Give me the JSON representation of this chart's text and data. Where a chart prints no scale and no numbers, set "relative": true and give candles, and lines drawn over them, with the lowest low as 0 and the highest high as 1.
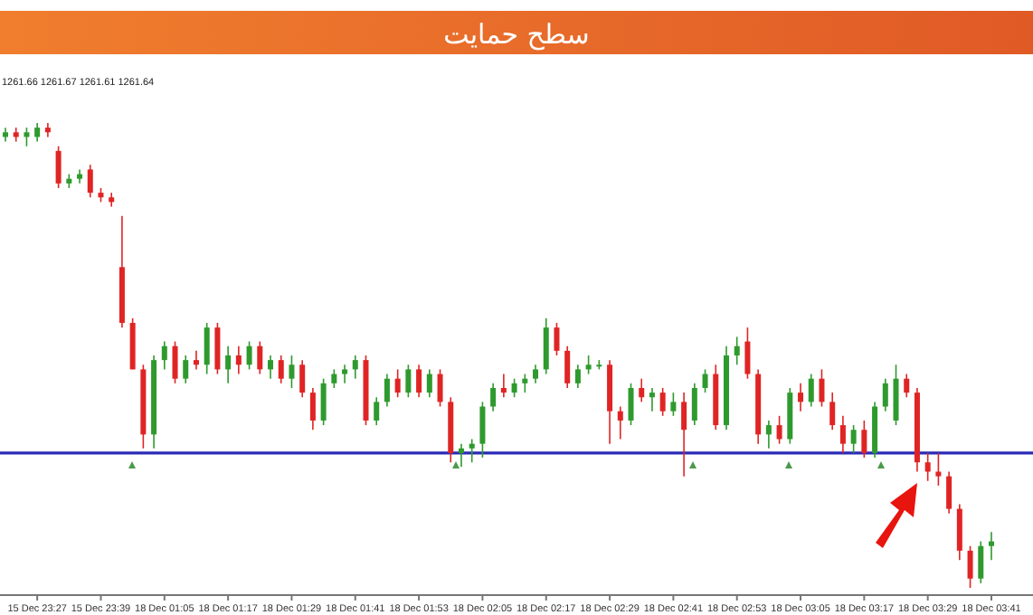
{
  "chart_data": {
    "type": "candlestick",
    "title": "سطح حمایت",
    "subtitle": "1261.66 1261.67 1261.61 1261.64",
    "relative": true,
    "categories": [
      null,
      null,
      null,
      "15 Dec 23:27",
      null,
      null,
      null,
      null,
      null,
      "15 Dec 23:39",
      null,
      null,
      null,
      null,
      null,
      "18 Dec 01:05",
      null,
      null,
      null,
      null,
      null,
      "18 Dec 01:17",
      null,
      null,
      null,
      null,
      null,
      "18 Dec 01:29",
      null,
      null,
      null,
      null,
      null,
      "18 Dec 01:41",
      null,
      null,
      null,
      null,
      null,
      "18 Dec 01:53",
      null,
      null,
      null,
      null,
      null,
      "18 Dec 02:05",
      null,
      null,
      null,
      null,
      null,
      "18 Dec 02:17",
      null,
      null,
      null,
      null,
      null,
      "18 Dec 02:29",
      null,
      null,
      null,
      null,
      null,
      "18 Dec 02:41",
      null,
      null,
      null,
      null,
      null,
      "18 Dec 02:53",
      null,
      null,
      null,
      null,
      null,
      "18 Dec 03:05",
      null,
      null,
      null,
      null,
      null,
      "18 Dec 03:17",
      null,
      null,
      null,
      null,
      null,
      "18 Dec 03:29",
      null,
      null,
      null,
      null,
      null,
      "18 Dec 03:41"
    ],
    "ohlc": [
      [
        0.97,
        0.99,
        0.96,
        0.98
      ],
      [
        0.98,
        0.99,
        0.96,
        0.97
      ],
      [
        0.97,
        0.99,
        0.95,
        0.98
      ],
      [
        0.97,
        1.0,
        0.96,
        0.99
      ],
      [
        0.99,
        1.0,
        0.97,
        0.98
      ],
      [
        0.94,
        0.95,
        0.86,
        0.87
      ],
      [
        0.87,
        0.89,
        0.86,
        0.88
      ],
      [
        0.88,
        0.9,
        0.87,
        0.89
      ],
      [
        0.9,
        0.91,
        0.84,
        0.85
      ],
      [
        0.85,
        0.86,
        0.83,
        0.84
      ],
      [
        0.84,
        0.85,
        0.82,
        0.83
      ],
      [
        0.69,
        0.8,
        0.56,
        0.57
      ],
      [
        0.57,
        0.58,
        0.47,
        0.47
      ],
      [
        0.47,
        0.48,
        0.3,
        0.33
      ],
      [
        0.33,
        0.5,
        0.3,
        0.49
      ],
      [
        0.49,
        0.53,
        0.47,
        0.52
      ],
      [
        0.52,
        0.53,
        0.44,
        0.45
      ],
      [
        0.45,
        0.5,
        0.44,
        0.49
      ],
      [
        0.49,
        0.51,
        0.47,
        0.48
      ],
      [
        0.48,
        0.57,
        0.46,
        0.56
      ],
      [
        0.56,
        0.57,
        0.46,
        0.47
      ],
      [
        0.47,
        0.52,
        0.44,
        0.5
      ],
      [
        0.5,
        0.52,
        0.46,
        0.48
      ],
      [
        0.48,
        0.53,
        0.47,
        0.52
      ],
      [
        0.52,
        0.53,
        0.46,
        0.47
      ],
      [
        0.47,
        0.5,
        0.45,
        0.49
      ],
      [
        0.49,
        0.5,
        0.44,
        0.45
      ],
      [
        0.45,
        0.5,
        0.43,
        0.48
      ],
      [
        0.48,
        0.49,
        0.41,
        0.42
      ],
      [
        0.42,
        0.43,
        0.34,
        0.36
      ],
      [
        0.36,
        0.45,
        0.35,
        0.44
      ],
      [
        0.44,
        0.47,
        0.43,
        0.46
      ],
      [
        0.46,
        0.48,
        0.44,
        0.47
      ],
      [
        0.47,
        0.5,
        0.45,
        0.49
      ],
      [
        0.49,
        0.5,
        0.35,
        0.36
      ],
      [
        0.36,
        0.41,
        0.35,
        0.4
      ],
      [
        0.4,
        0.46,
        0.39,
        0.45
      ],
      [
        0.45,
        0.47,
        0.41,
        0.42
      ],
      [
        0.42,
        0.48,
        0.41,
        0.47
      ],
      [
        0.47,
        0.48,
        0.41,
        0.42
      ],
      [
        0.42,
        0.47,
        0.41,
        0.46
      ],
      [
        0.46,
        0.47,
        0.39,
        0.4
      ],
      [
        0.4,
        0.41,
        0.27,
        0.29
      ],
      [
        0.29,
        0.31,
        0.26,
        0.3
      ],
      [
        0.3,
        0.32,
        0.27,
        0.31
      ],
      [
        0.31,
        0.4,
        0.28,
        0.39
      ],
      [
        0.39,
        0.44,
        0.38,
        0.43
      ],
      [
        0.43,
        0.46,
        0.41,
        0.42
      ],
      [
        0.42,
        0.45,
        0.41,
        0.44
      ],
      [
        0.44,
        0.46,
        0.42,
        0.45
      ],
      [
        0.45,
        0.48,
        0.44,
        0.47
      ],
      [
        0.47,
        0.58,
        0.46,
        0.56
      ],
      [
        0.56,
        0.57,
        0.5,
        0.51
      ],
      [
        0.51,
        0.52,
        0.43,
        0.44
      ],
      [
        0.44,
        0.48,
        0.43,
        0.47
      ],
      [
        0.47,
        0.5,
        0.46,
        0.48
      ],
      [
        0.48,
        0.49,
        0.47,
        0.48
      ],
      [
        0.48,
        0.49,
        0.31,
        0.38
      ],
      [
        0.38,
        0.39,
        0.32,
        0.36
      ],
      [
        0.36,
        0.44,
        0.35,
        0.43
      ],
      [
        0.43,
        0.45,
        0.4,
        0.41
      ],
      [
        0.41,
        0.43,
        0.38,
        0.42
      ],
      [
        0.42,
        0.43,
        0.37,
        0.38
      ],
      [
        0.38,
        0.42,
        0.37,
        0.4
      ],
      [
        0.4,
        0.42,
        0.24,
        0.34
      ],
      [
        0.36,
        0.44,
        0.35,
        0.43
      ],
      [
        0.43,
        0.47,
        0.42,
        0.46
      ],
      [
        0.46,
        0.48,
        0.34,
        0.35
      ],
      [
        0.35,
        0.52,
        0.34,
        0.5
      ],
      [
        0.5,
        0.54,
        0.48,
        0.52
      ],
      [
        0.53,
        0.56,
        0.45,
        0.46
      ],
      [
        0.46,
        0.47,
        0.31,
        0.33
      ],
      [
        0.33,
        0.36,
        0.3,
        0.35
      ],
      [
        0.35,
        0.37,
        0.31,
        0.32
      ],
      [
        0.32,
        0.43,
        0.31,
        0.42
      ],
      [
        0.42,
        0.44,
        0.38,
        0.4
      ],
      [
        0.4,
        0.46,
        0.39,
        0.45
      ],
      [
        0.45,
        0.47,
        0.39,
        0.4
      ],
      [
        0.4,
        0.42,
        0.34,
        0.35
      ],
      [
        0.35,
        0.37,
        0.29,
        0.31
      ],
      [
        0.31,
        0.35,
        0.29,
        0.34
      ],
      [
        0.34,
        0.36,
        0.28,
        0.29
      ],
      [
        0.29,
        0.4,
        0.28,
        0.39
      ],
      [
        0.39,
        0.45,
        0.38,
        0.44
      ],
      [
        0.36,
        0.48,
        0.35,
        0.45
      ],
      [
        0.45,
        0.46,
        0.41,
        0.42
      ],
      [
        0.42,
        0.43,
        0.25,
        0.27
      ],
      [
        0.27,
        0.29,
        0.23,
        0.25
      ],
      [
        0.25,
        0.29,
        0.22,
        0.24
      ],
      [
        0.24,
        0.25,
        0.16,
        0.17
      ],
      [
        0.17,
        0.18,
        0.06,
        0.08
      ],
      [
        0.08,
        0.09,
        0.0,
        0.02
      ],
      [
        0.02,
        0.1,
        0.01,
        0.09
      ],
      [
        0.09,
        0.12,
        0.06,
        0.1
      ]
    ],
    "ref_lines": [
      {
        "axis": "y",
        "value": 0.29,
        "color": "#2a2ab8"
      }
    ]
  }
}
